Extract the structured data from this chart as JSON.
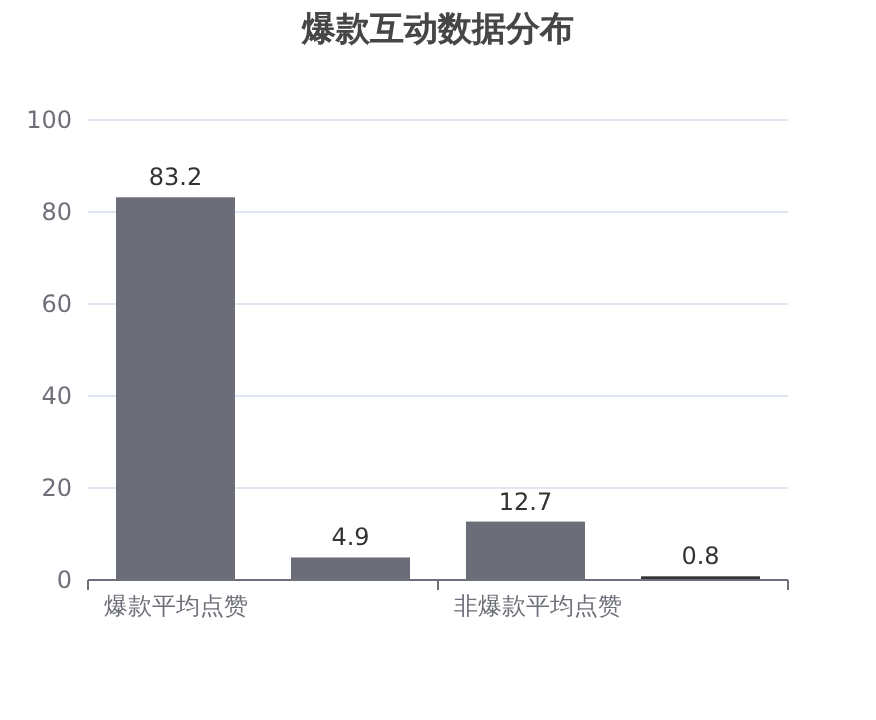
{
  "chart_data": {
    "type": "bar",
    "title": "爆款互动数据分布",
    "categories": [
      "爆款平均点赞",
      "非爆款平均点赞"
    ],
    "series": [
      {
        "colors": [
          "#6b6e78",
          "#6b6e78"
        ],
        "values": [
          83.2,
          12.7
        ]
      },
      {
        "colors": [
          "#6b6e78",
          "#333333"
        ],
        "values": [
          4.9,
          0.8
        ]
      }
    ],
    "ylim": [
      0,
      100
    ],
    "yticks": [
      0,
      20,
      40,
      60,
      80,
      100
    ],
    "grid": "y",
    "data_labels": true
  }
}
